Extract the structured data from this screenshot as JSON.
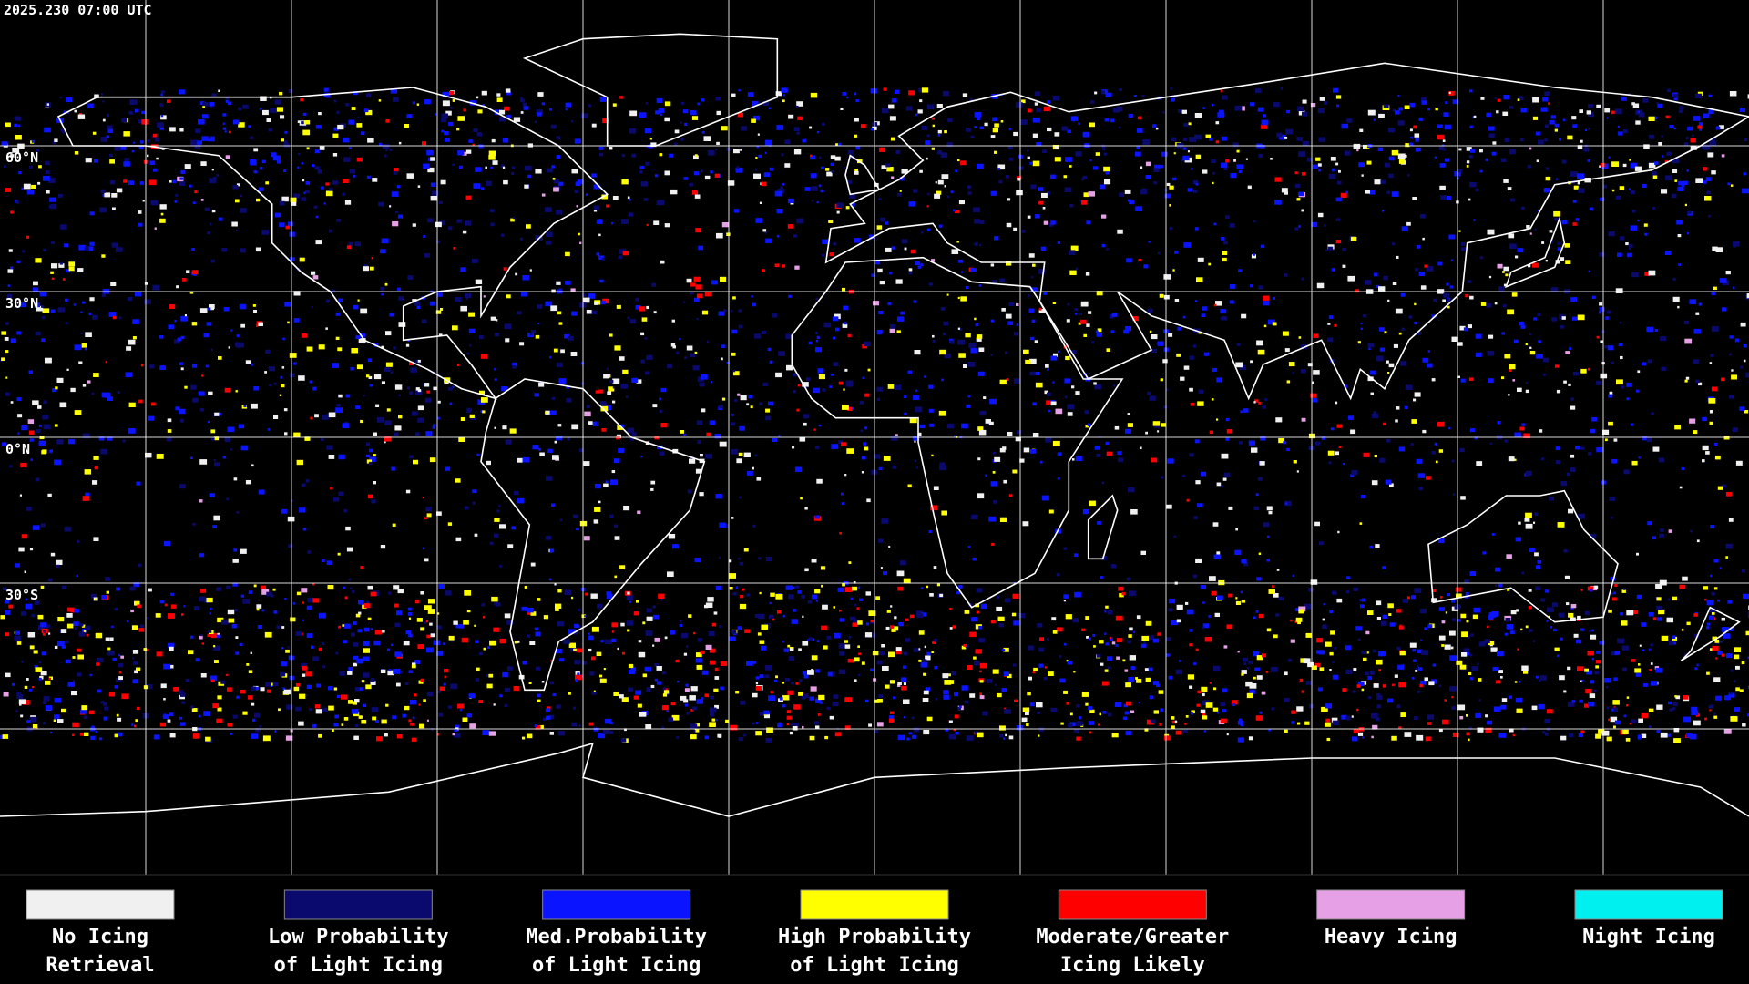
{
  "timestamp": "2025.230 07:00 UTC",
  "latitude_labels": [
    "60°N",
    "30°N",
    "0°N",
    "30°S"
  ],
  "legend": {
    "items": [
      {
        "lines": [
          "No Icing",
          "Retrieval"
        ],
        "color": "#f0f0f0"
      },
      {
        "lines": [
          "Low Probability",
          "of Light Icing"
        ],
        "color": "#0a0a6e"
      },
      {
        "lines": [
          "Med.Probability",
          "of Light Icing"
        ],
        "color": "#0a14ff"
      },
      {
        "lines": [
          "High Probability",
          "of Light Icing"
        ],
        "color": "#ffff00"
      },
      {
        "lines": [
          "Moderate/Greater",
          "Icing Likely"
        ],
        "color": "#ff0000"
      },
      {
        "lines": [
          "Heavy Icing"
        ],
        "color": "#e6a0e6"
      },
      {
        "lines": [
          "Night Icing"
        ],
        "color": "#00f0f0"
      }
    ]
  }
}
